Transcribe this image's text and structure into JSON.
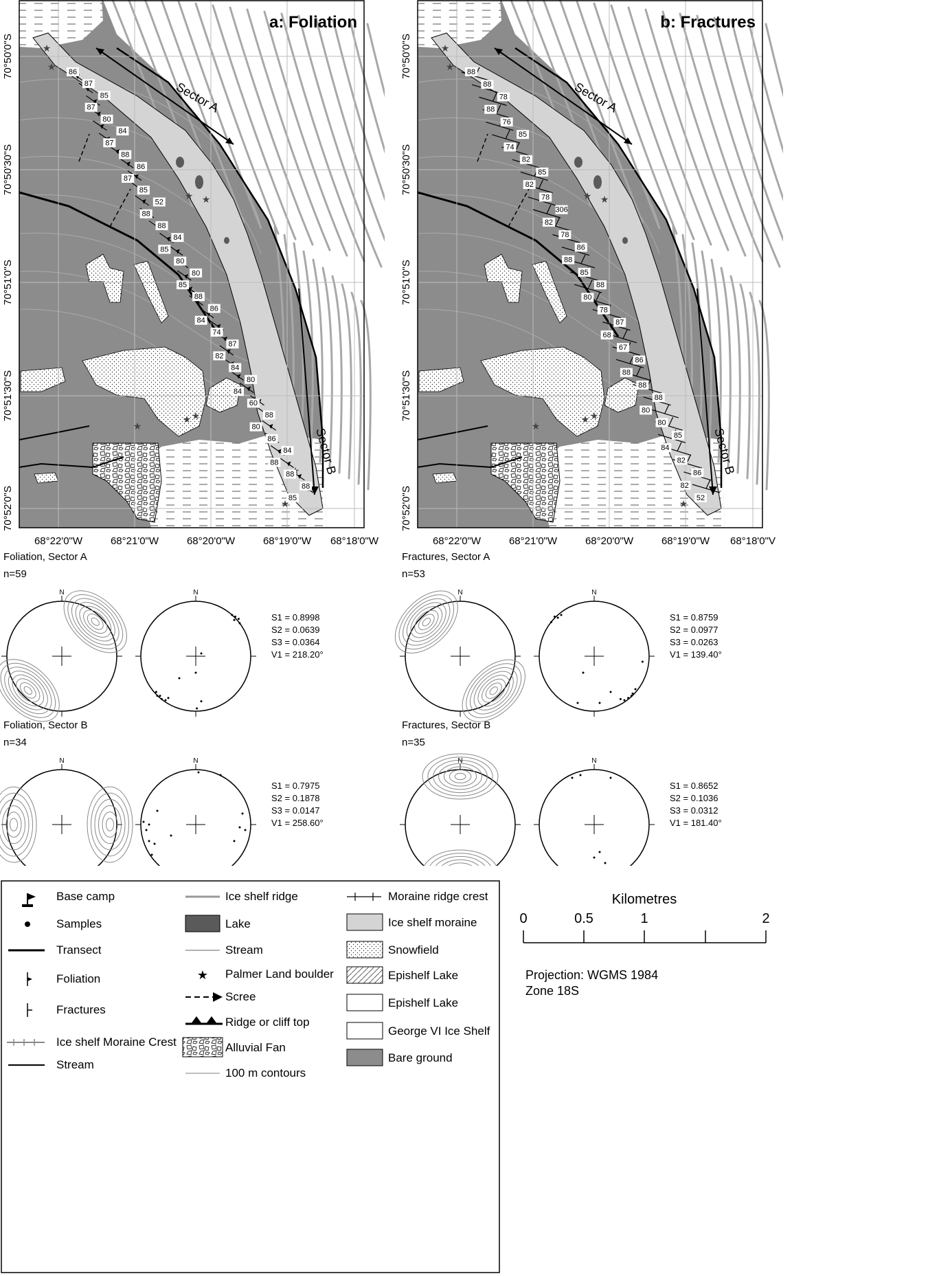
{
  "maps": [
    {
      "id": "a",
      "title": "a: Foliation",
      "lat_labels": [
        "70°50'0\"S",
        "70°50'30\"S",
        "70°51'0\"S",
        "70°51'30\"S",
        "70°52'0\"S"
      ],
      "lon_labels": [
        "68°22'0\"W",
        "68°21'0\"W",
        "68°20'0\"W",
        "68°19'0\"W",
        "68°18'0\"W"
      ],
      "sector_a": "Sector A",
      "sector_b": "Sector B",
      "dips": [
        "86",
        "87",
        "85",
        "87",
        "80",
        "84",
        "87",
        "88",
        "86",
        "87",
        "85",
        "52",
        "88",
        "88",
        "84",
        "85",
        "80",
        "80",
        "85",
        "88",
        "86",
        "84",
        "74",
        "87",
        "82",
        "84",
        "80",
        "84",
        "60",
        "88",
        "80",
        "86",
        "84",
        "88",
        "88",
        "88",
        "85"
      ]
    },
    {
      "id": "b",
      "title": "b: Fractures",
      "lat_labels": [
        "70°50'0\"S",
        "70°50'30\"S",
        "70°51'0\"S",
        "70°51'30\"S",
        "70°52'0\"S"
      ],
      "lon_labels": [
        "68°22'0\"W",
        "68°21'0\"W",
        "68°20'0\"W",
        "68°19'0\"W",
        "68°18'0\"V"
      ],
      "sector_a": "Sector A",
      "sector_b": "Sector B",
      "dips": [
        "88",
        "88",
        "78",
        "88",
        "76",
        "85",
        "74",
        "82",
        "85",
        "82",
        "78",
        "306",
        "82",
        "78",
        "86",
        "88",
        "85",
        "88",
        "80",
        "78",
        "87",
        "68",
        "67",
        "86",
        "88",
        "88",
        "88",
        "80",
        "80",
        "85",
        "84",
        "82",
        "86",
        "82",
        "52"
      ]
    }
  ],
  "stereonets": [
    {
      "title": "Foliation, Sector A",
      "n": "n=59",
      "north": "N",
      "s1": "S1 = 0.8998",
      "s2": "S2 = 0.0639",
      "s3": "S3 = 0.0364",
      "v1": "V1 = 218.20°"
    },
    {
      "title": "Fractures, Sector A",
      "n": "n=53",
      "north": "N",
      "s1": "S1 = 0.8759",
      "s2": "S2 = 0.0977",
      "s3": "S3 = 0.0263",
      "v1": "V1 = 139.40°"
    },
    {
      "title": "Foliation, Sector B",
      "n": "n=34",
      "north": "N",
      "s1": "S1 = 0.7975",
      "s2": "S2 = 0.1878",
      "s3": "S3 = 0.0147",
      "v1": "V1 = 258.60°"
    },
    {
      "title": "Fractures, Sector B",
      "n": "n=35",
      "north": "N",
      "s1": "S1 = 0.8652",
      "s2": "S2 = 0.1036",
      "s3": "S3 = 0.0312",
      "v1": "V1 = 181.40°"
    }
  ],
  "legend": {
    "col1": [
      "Base camp",
      "Samples",
      "Transect",
      "Foliation",
      "Fractures",
      "Ice shelf Moraine Crest",
      "Stream"
    ],
    "col2": [
      "Ice shelf ridge",
      "Lake",
      "Stream",
      "Palmer Land boulder",
      "Scree",
      "Ridge or cliff top",
      "Alluvial Fan",
      "100 m contours"
    ],
    "col3": [
      "Moraine ridge crest",
      "Ice shelf moraine",
      "Snowfield",
      "Epishelf Lake",
      "Epishelf Lake",
      "George VI Ice Shelf",
      "Bare ground"
    ]
  },
  "scale": {
    "title": "Kilometres",
    "ticks": [
      "0",
      "0.5",
      "1",
      "2"
    ],
    "projection": "Projection: WGMS 1984",
    "zone": "Zone 18S"
  },
  "colors": {
    "bare_ground": "#8c8c8c",
    "moraine": "#d4d4d4",
    "lake": "#5a5a5a",
    "ridge": "#a8a8a8"
  }
}
